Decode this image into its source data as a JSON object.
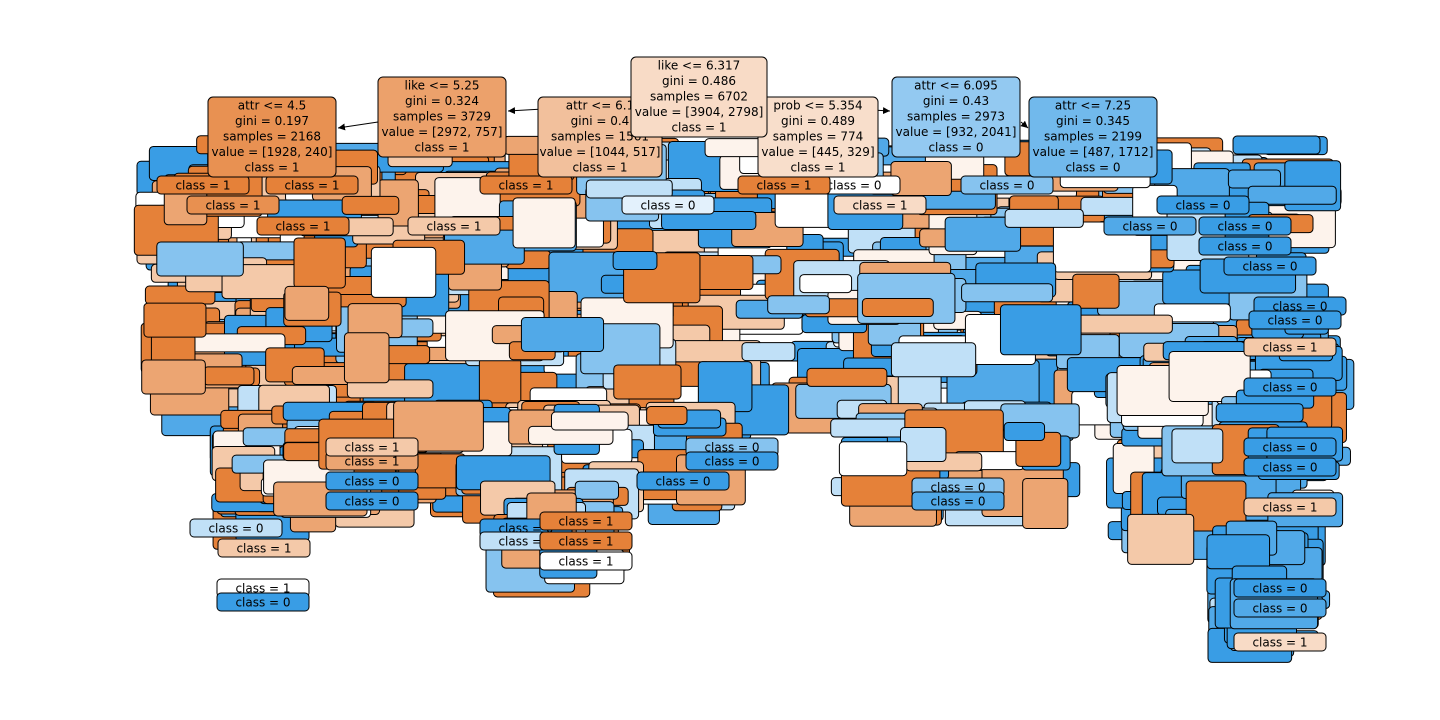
{
  "nodes": [
    {
      "lines": [
        "attr <= 6.1",
        "gini = 0.4",
        "samples = 1561",
        "value = [1044, 517]",
        "class = 1"
      ],
      "color": "#f2c09c"
    },
    {
      "lines": [
        "attr <= 4.5",
        "gini = 0.197",
        "samples = 2168",
        "value = [1928, 240]",
        "class = 1"
      ],
      "color": "#e89152"
    },
    {
      "lines": [
        "attr <= 7.25",
        "gini = 0.345",
        "samples = 2199",
        "value = [487, 1712]",
        "class = 0"
      ],
      "color": "#71b9ec"
    },
    {
      "lines": [
        "prob <= 5.354",
        "gini = 0.489",
        "samples = 774",
        "value = [445, 329]",
        "class = 1"
      ],
      "color": "#f8decb"
    },
    {
      "lines": [
        "like <= 5.25",
        "gini = 0.324",
        "samples = 3729",
        "value = [2972, 757]",
        "class = 1"
      ],
      "color": "#eca16b"
    },
    {
      "lines": [
        "attr <= 6.095",
        "gini = 0.43",
        "samples = 2973",
        "value = [932, 2041]",
        "class = 0"
      ],
      "color": "#93c9f1"
    },
    {
      "lines": [
        "like <= 6.317",
        "gini = 0.486",
        "samples = 6702",
        "value = [3904, 2798]",
        "class = 1"
      ],
      "color": "#f8dbc6"
    }
  ],
  "leaves": [
    {
      "label": "class = 1",
      "color": "#e58139"
    },
    {
      "label": "class = 1",
      "color": "#e58139"
    },
    {
      "label": "class = 1",
      "color": "#e89050"
    },
    {
      "label": "class = 1",
      "color": "#e58139"
    },
    {
      "label": "class = 1",
      "color": "#f4c9a9"
    },
    {
      "label": "class = 1",
      "color": "#e58139"
    },
    {
      "label": "class = 1",
      "color": "#eca572"
    },
    {
      "label": "class = 0",
      "color": "#ffffff"
    },
    {
      "label": "class = 1",
      "color": "#f8dbc6"
    },
    {
      "label": "class = 0",
      "color": "#e3f1fc"
    },
    {
      "label": "class = 0",
      "color": "#86c3ef"
    },
    {
      "label": "class = 0",
      "color": "#86c3ef"
    },
    {
      "label": "class = 0",
      "color": "#51a9e8"
    },
    {
      "label": "class = 0",
      "color": "#51a9e8"
    },
    {
      "label": "class = 0",
      "color": "#399de5"
    },
    {
      "label": "class = 0",
      "color": "#399de5"
    },
    {
      "label": "class = 0",
      "color": "#399de5"
    },
    {
      "label": "class = 0",
      "color": "#399de5"
    },
    {
      "label": "class = 1",
      "color": "#f4c9a9"
    },
    {
      "label": "class = 0",
      "color": "#399de5"
    },
    {
      "label": "class = 0",
      "color": "#399de5"
    },
    {
      "label": "class = 0",
      "color": "#399de5"
    },
    {
      "label": "class = 1",
      "color": "#f4c9a9"
    },
    {
      "label": "class = 0",
      "color": "#399de5"
    },
    {
      "label": "class = 0",
      "color": "#399de5"
    },
    {
      "label": "class = 1",
      "color": "#f8dbc6"
    },
    {
      "label": "class = 0",
      "color": "#399de5"
    },
    {
      "label": "class = 0",
      "color": "#51a9e8"
    },
    {
      "label": "class = 0",
      "color": "#399de5"
    },
    {
      "label": "class = 1",
      "color": "#e58139"
    },
    {
      "label": "class = 0",
      "color": "#c0e0f7"
    },
    {
      "label": "class = 1",
      "color": "#f4c9a9"
    },
    {
      "label": "class = 1",
      "color": "#ffffff"
    },
    {
      "label": "class = 0",
      "color": "#399de5"
    },
    {
      "label": "class = 1",
      "color": "#f4c9a9"
    },
    {
      "label": "class = 0",
      "color": "#399de5"
    },
    {
      "label": "class = 0",
      "color": "#399de5"
    },
    {
      "label": "class = 0",
      "color": "#c0e0f7"
    },
    {
      "label": "class = 1",
      "color": "#e58139"
    },
    {
      "label": "class = 1",
      "color": "#e58139"
    },
    {
      "label": "class = 1",
      "color": "#ffffff"
    },
    {
      "label": "class = 0",
      "color": "#86c3ef"
    },
    {
      "label": "class = 0",
      "color": "#399de5"
    },
    {
      "label": "class = 0",
      "color": "#399de5"
    }
  ]
}
